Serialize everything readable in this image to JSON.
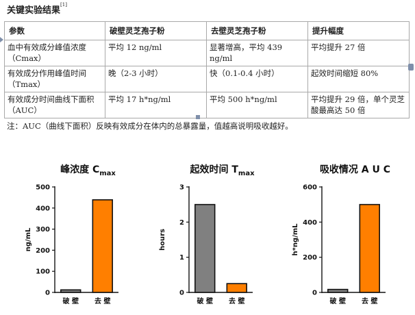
{
  "document": {
    "title": "关键实验结果",
    "title_ref": "[1]",
    "table": {
      "headers": [
        "参数",
        "破壁灵芝孢子粉",
        "去壁灵芝孢子粉",
        "提升幅度"
      ],
      "rows": [
        [
          "血中有效成分峰值浓度（Cmax）",
          "平均 12 ng/ml",
          "显著增高，平均 439 ng/ml",
          "平均提升 27 倍"
        ],
        [
          "有效成分作用峰值时间（Tmax）",
          "晚（2-3 小时）",
          "快（0.1-0.4 小时）",
          "起效时间缩短 80%"
        ],
        [
          "有效成分时间曲线下面积（AUC）",
          "平均 17 h*ng/ml",
          "平均 500 h*ng/ml",
          "平均提升 29 倍，单个灵芝酸最高达 50 倍"
        ]
      ]
    },
    "note": "注：AUC（曲线下面积）反映有效成分在体内的总暴露量，值越高说明吸收越好。"
  },
  "chart_data": [
    {
      "type": "bar",
      "title": "峰浓度 C",
      "title_sub": "max",
      "ylabel": "ng/mL",
      "categories": [
        "破 壁",
        "去 壁"
      ],
      "values": [
        12,
        439
      ],
      "ylim": [
        0,
        500
      ],
      "yticks": [
        0,
        100,
        200,
        300,
        400,
        500
      ],
      "colors": [
        "#808080",
        "#ff7f00"
      ],
      "grid": false
    },
    {
      "type": "bar",
      "title": "起效时间 T",
      "title_sub": "max",
      "ylabel": "hours",
      "categories": [
        "破 壁",
        "去 壁"
      ],
      "values": [
        2.5,
        0.25
      ],
      "ylim": [
        0,
        3
      ],
      "yticks": [
        0,
        1,
        2,
        3
      ],
      "colors": [
        "#808080",
        "#ff7f00"
      ],
      "grid": false
    },
    {
      "type": "bar",
      "title": "吸收情况 A U C",
      "title_sub": "",
      "ylabel": "h*ng/mL",
      "categories": [
        "破 壁",
        "去 壁"
      ],
      "values": [
        17,
        500
      ],
      "ylim": [
        0,
        600
      ],
      "yticks": [
        0,
        200,
        400,
        600
      ],
      "colors": [
        "#808080",
        "#ff7f00"
      ],
      "grid": false
    }
  ]
}
